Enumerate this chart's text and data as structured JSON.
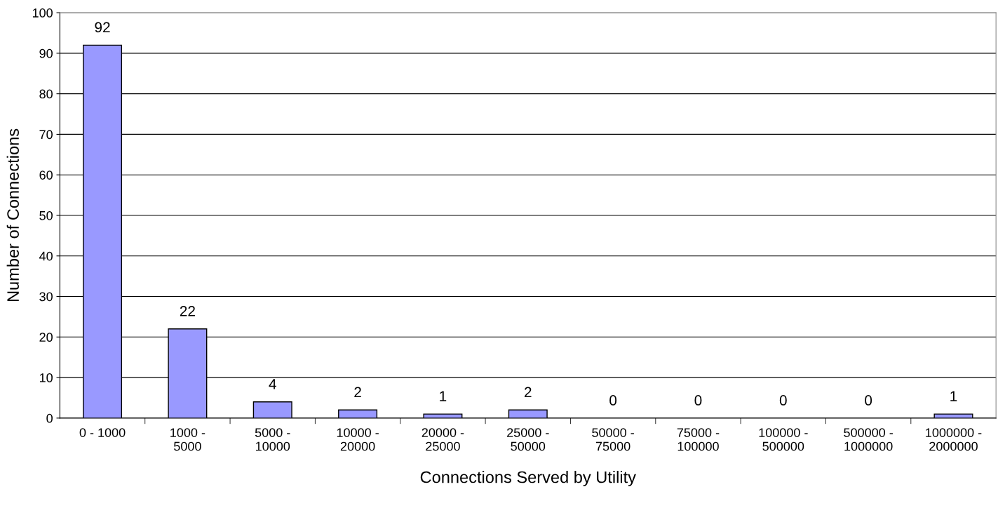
{
  "chart_data": {
    "type": "bar",
    "xlabel": "Connections Served by Utility",
    "ylabel": "Number of Connections",
    "categories": [
      "0 - 1000",
      "1000 -\n5000",
      "5000 -\n10000",
      "10000 -\n20000",
      "20000 -\n25000",
      "25000 -\n50000",
      "50000 -\n75000",
      "75000 -\n100000",
      "100000 -\n500000",
      "500000 -\n1000000",
      "1000000 -\n2000000"
    ],
    "values": [
      92,
      22,
      4,
      2,
      1,
      2,
      0,
      0,
      0,
      0,
      1
    ],
    "color": "#9999ff",
    "ylim": [
      0,
      100
    ],
    "yticks": [
      0,
      10,
      20,
      30,
      40,
      50,
      60,
      70,
      80,
      90,
      100
    ],
    "grid": "y",
    "data_labels": true
  }
}
